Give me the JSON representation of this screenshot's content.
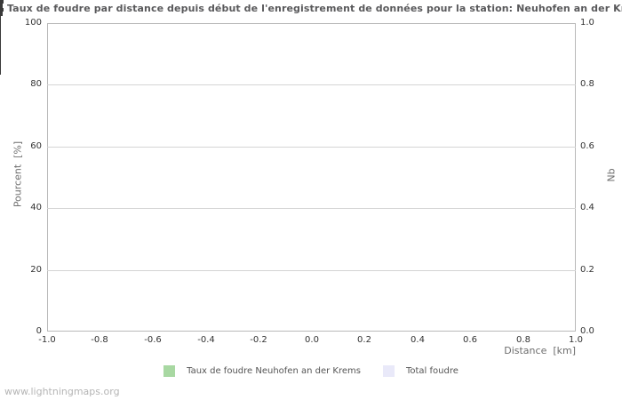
{
  "watermark": "www.lightningmaps.org",
  "colors": {
    "title": "#59595b",
    "frame": "#b9b9b9",
    "grid": "#d4d4d4",
    "tick": "#3a3a3a",
    "tick_label": "#333333",
    "axis_title": "#6e6e6e",
    "legend_text": "#555555",
    "watermark_text": "#b5b5b5",
    "series_green": "#a8d8a2",
    "series_lavender": "#e9e9f9"
  },
  "chart_data": {
    "type": "bar",
    "title": "Taux de foudre par distance depuis début de l'enregistrement de données pour la station: Neuhofen an der Krems",
    "grid": "horizontal-major-only",
    "legend_position": "bottom-center",
    "series": [
      {
        "name": "Taux de foudre Neuhofen an der Krems",
        "color": "#a8d8a2",
        "axis": "left",
        "values": []
      },
      {
        "name": "Total foudre",
        "color": "#e9e9f9",
        "axis": "right",
        "values": []
      }
    ],
    "x_axis": {
      "label": "Distance  [km]",
      "min": -1.0,
      "max": 1.0,
      "tick_values": [
        -1.0,
        -0.8,
        -0.6,
        -0.4,
        -0.2,
        0.0,
        0.2,
        0.4,
        0.6,
        0.8,
        1.0
      ],
      "tick_labels": [
        "-1.0",
        "-0.8",
        "-0.6",
        "-0.4",
        "-0.2",
        "0.0",
        "0.2",
        "0.4",
        "0.6",
        "0.8",
        "1.0"
      ],
      "minor_step": 0.1
    },
    "y_axis_left": {
      "label": "Pourcent  [%]",
      "min": 0,
      "max": 100,
      "tick_values": [
        0,
        20,
        40,
        60,
        80,
        100
      ],
      "tick_labels": [
        "0",
        "20",
        "40",
        "60",
        "80",
        "100"
      ],
      "minor_step": 10
    },
    "y_axis_right": {
      "label": "Nb",
      "min": 0.0,
      "max": 1.0,
      "tick_values": [
        0.0,
        0.2,
        0.4,
        0.6,
        0.8,
        1.0
      ],
      "tick_labels": [
        "0.0",
        "0.2",
        "0.4",
        "0.6",
        "0.8",
        "1.0"
      ],
      "minor_step": 0.1
    }
  }
}
